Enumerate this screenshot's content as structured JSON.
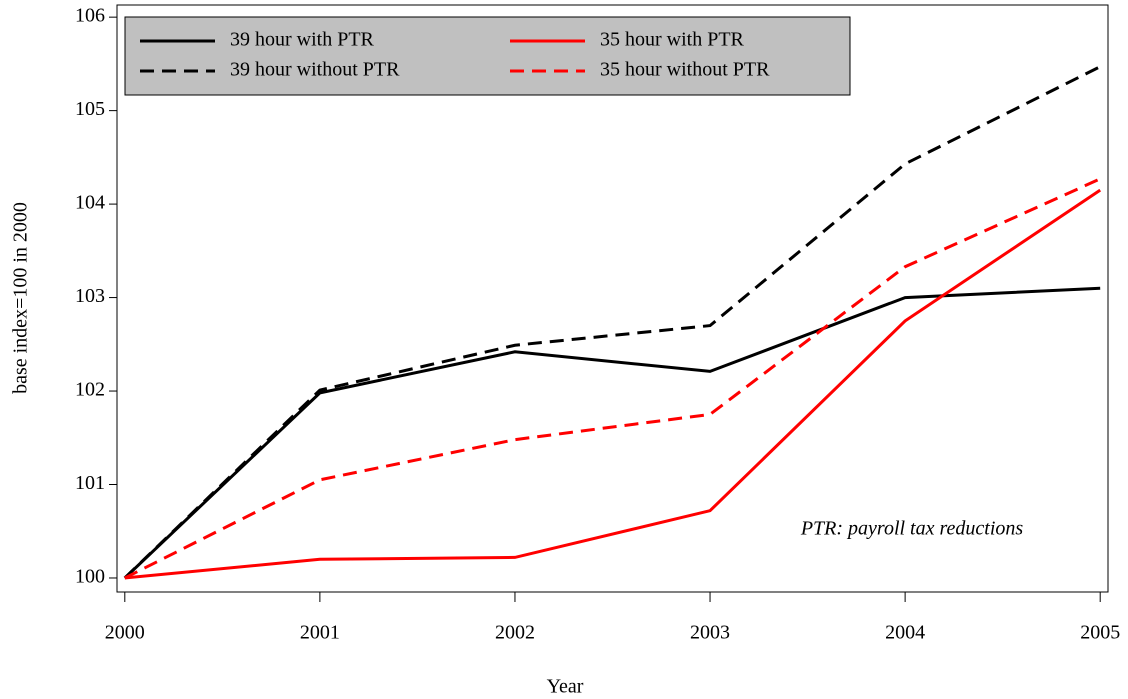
{
  "chart_data": {
    "type": "line",
    "x_label": "Year",
    "y_label": "base index=100 in 2000",
    "annotation": "PTR: payroll tax reductions",
    "x": [
      2000,
      2001,
      2002,
      2003,
      2004,
      2005
    ],
    "xlim": [
      1999.96,
      2005.04
    ],
    "xticks": [
      2000,
      2001,
      2002,
      2003,
      2004,
      2005
    ],
    "ylim": [
      99.85,
      106.13
    ],
    "yticks": [
      100,
      101,
      102,
      103,
      104,
      105,
      106
    ],
    "legend": "top-left",
    "series": [
      {
        "name": "39 hour with PTR",
        "color": "#000000",
        "dash": "solid",
        "values": [
          100,
          101.98,
          102.42,
          102.21,
          103.0,
          103.1
        ]
      },
      {
        "name": "39 hour without PTR",
        "color": "#000000",
        "dash": "dashed",
        "values": [
          100,
          102.01,
          102.49,
          102.7,
          104.43,
          105.47
        ]
      },
      {
        "name": "35 hour with PTR",
        "color": "#ff0000",
        "dash": "solid",
        "values": [
          100,
          100.2,
          100.22,
          100.72,
          102.75,
          104.15
        ]
      },
      {
        "name": "35 hour without PTR",
        "color": "#ff0000",
        "dash": "dashed",
        "values": [
          100,
          101.05,
          101.48,
          101.75,
          103.33,
          104.27
        ]
      }
    ]
  }
}
